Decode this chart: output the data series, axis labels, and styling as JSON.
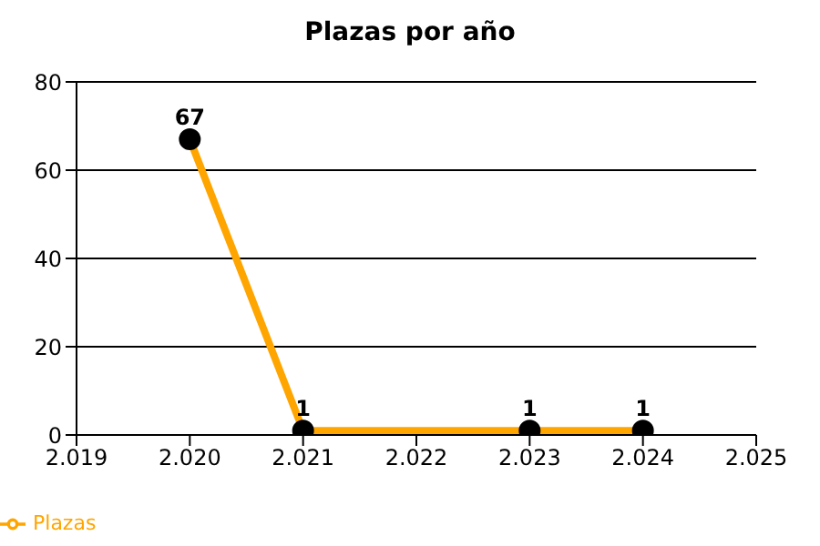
{
  "chart_data": {
    "type": "line",
    "title": "Plazas por año",
    "x": [
      2020,
      2021,
      2023,
      2024
    ],
    "series": [
      {
        "name": "Plazas",
        "color": "#ffa500",
        "values": [
          67,
          1,
          1,
          1
        ]
      }
    ],
    "xlim": [
      2019,
      2025
    ],
    "xticks": [
      {
        "value": 2019,
        "label": "2.019"
      },
      {
        "value": 2020,
        "label": "2.020"
      },
      {
        "value": 2021,
        "label": "2.021"
      },
      {
        "value": 2022,
        "label": "2.022"
      },
      {
        "value": 2023,
        "label": "2.023"
      },
      {
        "value": 2024,
        "label": "2.024"
      },
      {
        "value": 2025,
        "label": "2.025"
      }
    ],
    "ylim": [
      0,
      80
    ],
    "yticks": [
      0,
      20,
      40,
      60,
      80
    ],
    "grid": "y",
    "legend": "bottom left",
    "marker": "circle",
    "data_labels": true
  }
}
